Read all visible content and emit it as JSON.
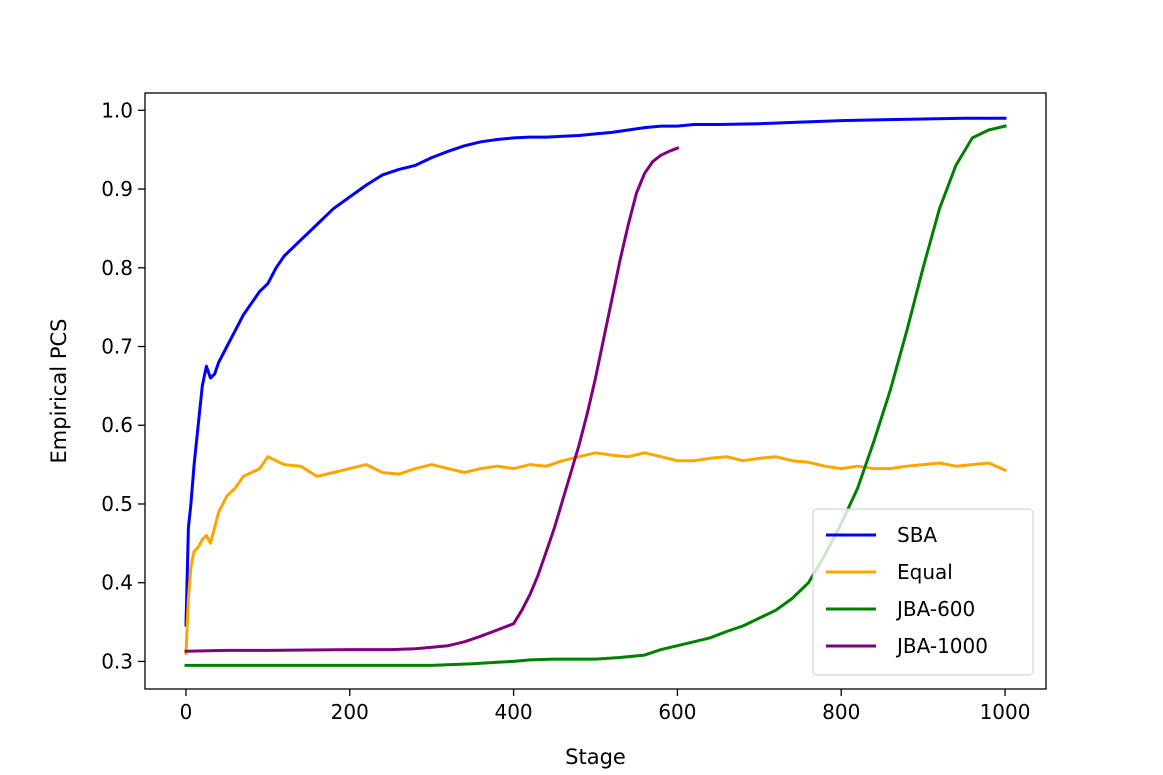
{
  "chart_data": {
    "type": "line",
    "title": "",
    "xlabel": "Stage",
    "ylabel": "Empirical PCS",
    "xlim": [
      -50,
      1050
    ],
    "ylim": [
      0.265,
      1.022
    ],
    "xticks": [
      0,
      200,
      400,
      600,
      800,
      1000
    ],
    "yticks": [
      0.3,
      0.4,
      0.5,
      0.6,
      0.7,
      0.8,
      0.9,
      1.0
    ],
    "xtick_labels": [
      "0",
      "200",
      "400",
      "600",
      "800",
      "1000"
    ],
    "ytick_labels": [
      "0.3",
      "0.4",
      "0.5",
      "0.6",
      "0.7",
      "0.8",
      "0.9",
      "1.0"
    ],
    "grid": false,
    "legend_position": "lower-right",
    "series": [
      {
        "name": "SBA",
        "color": "#0000ff",
        "x": [
          0,
          3,
          6,
          10,
          15,
          20,
          25,
          30,
          35,
          40,
          50,
          60,
          70,
          80,
          90,
          100,
          110,
          120,
          140,
          160,
          180,
          200,
          220,
          240,
          260,
          280,
          300,
          320,
          340,
          360,
          380,
          400,
          420,
          440,
          460,
          480,
          500,
          520,
          540,
          560,
          580,
          600,
          620,
          650,
          700,
          750,
          800,
          850,
          900,
          950,
          1000
        ],
        "y": [
          0.346,
          0.47,
          0.5,
          0.55,
          0.6,
          0.65,
          0.675,
          0.66,
          0.665,
          0.68,
          0.7,
          0.72,
          0.74,
          0.755,
          0.77,
          0.78,
          0.8,
          0.815,
          0.835,
          0.855,
          0.875,
          0.89,
          0.905,
          0.918,
          0.925,
          0.93,
          0.94,
          0.948,
          0.955,
          0.96,
          0.963,
          0.965,
          0.966,
          0.966,
          0.967,
          0.968,
          0.97,
          0.972,
          0.975,
          0.978,
          0.98,
          0.98,
          0.982,
          0.982,
          0.983,
          0.985,
          0.987,
          0.988,
          0.989,
          0.99,
          0.99
        ]
      },
      {
        "name": "Equal",
        "color": "#ffa500",
        "x": [
          0,
          3,
          6,
          10,
          15,
          20,
          25,
          30,
          35,
          40,
          45,
          50,
          60,
          70,
          80,
          90,
          100,
          110,
          120,
          140,
          160,
          180,
          200,
          220,
          240,
          260,
          280,
          300,
          320,
          340,
          360,
          380,
          400,
          420,
          440,
          460,
          480,
          500,
          520,
          540,
          560,
          580,
          600,
          620,
          640,
          660,
          680,
          700,
          720,
          740,
          760,
          780,
          800,
          820,
          840,
          860,
          880,
          900,
          920,
          940,
          960,
          980,
          1000
        ],
        "y": [
          0.31,
          0.38,
          0.42,
          0.44,
          0.445,
          0.455,
          0.46,
          0.45,
          0.47,
          0.49,
          0.5,
          0.51,
          0.52,
          0.535,
          0.54,
          0.545,
          0.56,
          0.555,
          0.55,
          0.548,
          0.535,
          0.54,
          0.545,
          0.55,
          0.54,
          0.538,
          0.545,
          0.55,
          0.545,
          0.54,
          0.545,
          0.548,
          0.545,
          0.55,
          0.548,
          0.555,
          0.56,
          0.565,
          0.562,
          0.56,
          0.565,
          0.56,
          0.555,
          0.555,
          0.558,
          0.56,
          0.555,
          0.558,
          0.56,
          0.555,
          0.553,
          0.548,
          0.545,
          0.548,
          0.545,
          0.545,
          0.548,
          0.55,
          0.552,
          0.548,
          0.55,
          0.552,
          0.543
        ]
      },
      {
        "name": "JBA-600",
        "color": "#008000",
        "x": [
          0,
          100,
          200,
          300,
          350,
          380,
          400,
          420,
          450,
          500,
          530,
          560,
          580,
          600,
          620,
          640,
          660,
          680,
          700,
          720,
          740,
          760,
          780,
          800,
          820,
          840,
          860,
          880,
          900,
          920,
          940,
          960,
          980,
          1000
        ],
        "y": [
          0.295,
          0.295,
          0.295,
          0.295,
          0.297,
          0.299,
          0.3,
          0.302,
          0.303,
          0.303,
          0.305,
          0.308,
          0.315,
          0.32,
          0.325,
          0.33,
          0.338,
          0.345,
          0.355,
          0.365,
          0.38,
          0.4,
          0.435,
          0.475,
          0.52,
          0.58,
          0.645,
          0.72,
          0.8,
          0.875,
          0.93,
          0.965,
          0.975,
          0.98
        ]
      },
      {
        "name": "JBA-1000",
        "color": "#800080",
        "x": [
          0,
          50,
          100,
          200,
          250,
          280,
          300,
          320,
          340,
          360,
          380,
          400,
          410,
          420,
          430,
          440,
          450,
          460,
          470,
          480,
          490,
          500,
          510,
          520,
          530,
          540,
          550,
          560,
          570,
          580,
          590,
          600
        ],
        "y": [
          0.313,
          0.314,
          0.314,
          0.315,
          0.315,
          0.316,
          0.318,
          0.32,
          0.325,
          0.332,
          0.34,
          0.348,
          0.365,
          0.385,
          0.41,
          0.44,
          0.47,
          0.505,
          0.54,
          0.575,
          0.615,
          0.66,
          0.71,
          0.76,
          0.81,
          0.855,
          0.895,
          0.92,
          0.935,
          0.943,
          0.948,
          0.952
        ]
      }
    ]
  }
}
